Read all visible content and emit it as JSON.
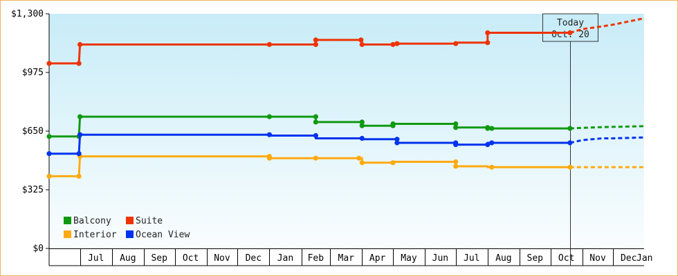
{
  "chart_data": {
    "type": "line",
    "title": "",
    "xlabel": "",
    "ylabel": "",
    "y_ticks": [
      {
        "value": 0,
        "label": "$0"
      },
      {
        "value": 325,
        "label": "$325"
      },
      {
        "value": 650,
        "label": "$650"
      },
      {
        "value": 975,
        "label": "$975"
      },
      {
        "value": 1300,
        "label": "$1,300"
      }
    ],
    "ylim": [
      0,
      1300
    ],
    "x_months": [
      "Jul",
      "Aug",
      "Sep",
      "Oct",
      "Nov",
      "Dec",
      "Jan",
      "Feb",
      "Mar",
      "Apr",
      "May",
      "Jun",
      "Jul",
      "Aug",
      "Sep",
      "Oct",
      "Nov",
      "Dec",
      "Jan"
    ],
    "xlim": [
      "2022-06-01",
      "2023-12-31"
    ],
    "today": {
      "line1": "Today",
      "line2": "Oct. 20",
      "date": "2023-10-20"
    },
    "grid": false,
    "legend_position": "bottom-left",
    "series": [
      {
        "name": "Balcony",
        "color": "#119911",
        "points": [
          [
            "2022-06-01",
            620
          ],
          [
            "2022-06-30",
            620
          ],
          [
            "2022-07-01",
            730
          ],
          [
            "2023-01-01",
            730
          ],
          [
            "2023-02-15",
            730
          ],
          [
            "2023-02-15",
            700
          ],
          [
            "2023-04-01",
            700
          ],
          [
            "2023-04-01",
            680
          ],
          [
            "2023-05-01",
            680
          ],
          [
            "2023-05-01",
            690
          ],
          [
            "2023-07-01",
            690
          ],
          [
            "2023-07-01",
            670
          ],
          [
            "2023-08-01",
            670
          ],
          [
            "2023-08-01",
            665
          ],
          [
            "2023-10-20",
            665
          ]
        ],
        "markers": [
          [
            "2022-06-01",
            620
          ],
          [
            "2022-06-30",
            620
          ],
          [
            "2022-07-01",
            730
          ],
          [
            "2023-01-01",
            730
          ],
          [
            "2023-02-15",
            730
          ],
          [
            "2023-02-15",
            700
          ],
          [
            "2023-04-01",
            700
          ],
          [
            "2023-04-01",
            680
          ],
          [
            "2023-05-01",
            680
          ],
          [
            "2023-05-01",
            690
          ],
          [
            "2023-07-01",
            690
          ],
          [
            "2023-07-01",
            670
          ],
          [
            "2023-08-01",
            670
          ],
          [
            "2023-08-01",
            665
          ],
          [
            "2023-08-05",
            665
          ],
          [
            "2023-10-20",
            665
          ]
        ],
        "forecast": [
          [
            "2023-10-20",
            665
          ],
          [
            "2023-11-01",
            668
          ],
          [
            "2023-11-20",
            672
          ],
          [
            "2023-12-31",
            677
          ]
        ]
      },
      {
        "name": "Suite",
        "color": "#ee3300",
        "points": [
          [
            "2022-06-01",
            1025
          ],
          [
            "2022-06-30",
            1025
          ],
          [
            "2022-07-01",
            1130
          ],
          [
            "2023-01-01",
            1130
          ],
          [
            "2023-02-15",
            1130
          ],
          [
            "2023-02-15",
            1155
          ],
          [
            "2023-03-31",
            1155
          ],
          [
            "2023-04-01",
            1130
          ],
          [
            "2023-05-05",
            1130
          ],
          [
            "2023-05-05",
            1135
          ],
          [
            "2023-07-01",
            1135
          ],
          [
            "2023-07-01",
            1140
          ],
          [
            "2023-08-01",
            1140
          ],
          [
            "2023-08-01",
            1195
          ],
          [
            "2023-10-20",
            1195
          ]
        ],
        "markers": [
          [
            "2022-06-01",
            1025
          ],
          [
            "2022-06-30",
            1025
          ],
          [
            "2022-07-01",
            1130
          ],
          [
            "2023-01-01",
            1130
          ],
          [
            "2023-02-15",
            1130
          ],
          [
            "2023-02-15",
            1155
          ],
          [
            "2023-03-31",
            1155
          ],
          [
            "2023-04-01",
            1130
          ],
          [
            "2023-05-01",
            1130
          ],
          [
            "2023-05-05",
            1135
          ],
          [
            "2023-07-01",
            1135
          ],
          [
            "2023-08-01",
            1140
          ],
          [
            "2023-08-01",
            1195
          ],
          [
            "2023-10-20",
            1195
          ]
        ],
        "forecast": [
          [
            "2023-10-20",
            1195
          ],
          [
            "2023-11-01",
            1215
          ],
          [
            "2023-11-20",
            1230
          ],
          [
            "2023-12-01",
            1240
          ],
          [
            "2023-12-31",
            1275
          ]
        ]
      },
      {
        "name": "Interior",
        "color": "#ffaa11",
        "points": [
          [
            "2022-06-01",
            400
          ],
          [
            "2022-06-30",
            400
          ],
          [
            "2022-07-01",
            510
          ],
          [
            "2023-01-01",
            510
          ],
          [
            "2023-01-01",
            500
          ],
          [
            "2023-04-01",
            500
          ],
          [
            "2023-04-01",
            475
          ],
          [
            "2023-05-01",
            475
          ],
          [
            "2023-05-01",
            480
          ],
          [
            "2023-07-01",
            480
          ],
          [
            "2023-07-01",
            455
          ],
          [
            "2023-08-01",
            455
          ],
          [
            "2023-08-01",
            450
          ],
          [
            "2023-10-20",
            450
          ]
        ],
        "markers": [
          [
            "2022-06-01",
            400
          ],
          [
            "2022-06-30",
            400
          ],
          [
            "2022-07-01",
            510
          ],
          [
            "2023-01-01",
            510
          ],
          [
            "2023-01-01",
            500
          ],
          [
            "2023-02-15",
            500
          ],
          [
            "2023-03-29",
            500
          ],
          [
            "2023-04-01",
            475
          ],
          [
            "2023-05-01",
            475
          ],
          [
            "2023-07-01",
            480
          ],
          [
            "2023-07-01",
            455
          ],
          [
            "2023-08-05",
            450
          ],
          [
            "2023-10-20",
            450
          ]
        ],
        "forecast": [
          [
            "2023-10-20",
            450
          ],
          [
            "2023-12-31",
            450
          ]
        ]
      },
      {
        "name": "Ocean View",
        "color": "#0033ee",
        "points": [
          [
            "2022-06-01",
            525
          ],
          [
            "2022-06-30",
            525
          ],
          [
            "2022-07-01",
            630
          ],
          [
            "2023-01-01",
            630
          ],
          [
            "2023-01-01",
            625
          ],
          [
            "2023-02-15",
            625
          ],
          [
            "2023-02-15",
            610
          ],
          [
            "2023-04-01",
            610
          ],
          [
            "2023-04-01",
            605
          ],
          [
            "2023-05-05",
            605
          ],
          [
            "2023-05-05",
            585
          ],
          [
            "2023-07-01",
            585
          ],
          [
            "2023-07-01",
            575
          ],
          [
            "2023-08-01",
            575
          ],
          [
            "2023-08-01",
            585
          ],
          [
            "2023-10-20",
            585
          ]
        ],
        "markers": [
          [
            "2022-06-01",
            525
          ],
          [
            "2022-06-30",
            525
          ],
          [
            "2022-07-01",
            630
          ],
          [
            "2023-01-01",
            630
          ],
          [
            "2023-02-15",
            625
          ],
          [
            "2023-04-01",
            610
          ],
          [
            "2023-05-05",
            605
          ],
          [
            "2023-05-05",
            585
          ],
          [
            "2023-07-01",
            585
          ],
          [
            "2023-07-01",
            575
          ],
          [
            "2023-08-01",
            575
          ],
          [
            "2023-08-05",
            585
          ],
          [
            "2023-10-20",
            585
          ]
        ],
        "forecast": [
          [
            "2023-10-20",
            585
          ],
          [
            "2023-11-01",
            600
          ],
          [
            "2023-11-20",
            610
          ],
          [
            "2023-12-01",
            610
          ],
          [
            "2023-12-31",
            615
          ]
        ]
      }
    ]
  },
  "colors": {
    "plot_bg_top": "#c8ecf8",
    "plot_bg_bottom": "#fafdfe",
    "frame_border": "#f0b060"
  }
}
